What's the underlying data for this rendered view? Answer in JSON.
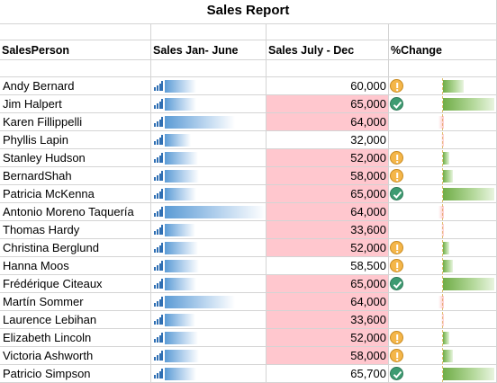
{
  "title": "Sales Report",
  "headers": {
    "salesperson": "SalesPerson",
    "jan_june": "Sales Jan- June",
    "july_dec": "Sales July - Dec",
    "change": "%Change"
  },
  "colors": {
    "highlight_fill": "#ffc7ce",
    "data_bar": "#5b9bd5",
    "positive_bar": "#70ad47",
    "warning_icon": "#f4b64a",
    "check_icon": "#3e9b72"
  },
  "rows": [
    {
      "name": "Andy Bernard",
      "jan_share": 0.31,
      "july_dec": "60,000",
      "highlight": false,
      "icon": "warning-icon",
      "change_share": 0.4
    },
    {
      "name": "Jim Halpert",
      "jan_share": 0.31,
      "july_dec": "65,000",
      "highlight": true,
      "icon": "check-icon",
      "change_share": 1.0
    },
    {
      "name": "Karen Fillippelli",
      "jan_share": 0.7,
      "july_dec": "64,000",
      "highlight": true,
      "icon": "none",
      "change_share": -0.1
    },
    {
      "name": "Phyllis Lapin",
      "jan_share": 0.26,
      "july_dec": "32,000",
      "highlight": false,
      "icon": "none",
      "change_share": -0.05
    },
    {
      "name": "Stanley Hudson",
      "jan_share": 0.33,
      "july_dec": "52,000",
      "highlight": true,
      "icon": "warning-icon",
      "change_share": 0.12
    },
    {
      "name": "BernardShah",
      "jan_share": 0.34,
      "july_dec": "58,000",
      "highlight": true,
      "icon": "warning-icon",
      "change_share": 0.2
    },
    {
      "name": "Patricia McKenna",
      "jan_share": 0.31,
      "july_dec": "65,000",
      "highlight": true,
      "icon": "check-icon",
      "change_share": 1.0
    },
    {
      "name": "Antonio Moreno Taquería",
      "jan_share": 1.0,
      "july_dec": "64,000",
      "highlight": true,
      "icon": "none",
      "change_share": -0.1
    },
    {
      "name": "Thomas Hardy",
      "jan_share": 0.3,
      "july_dec": "33,600",
      "highlight": true,
      "icon": "none",
      "change_share": -0.05
    },
    {
      "name": "Christina Berglund",
      "jan_share": 0.33,
      "july_dec": "52,000",
      "highlight": true,
      "icon": "warning-icon",
      "change_share": 0.12
    },
    {
      "name": "Hanna Moos",
      "jan_share": 0.34,
      "july_dec": "58,500",
      "highlight": false,
      "icon": "warning-icon",
      "change_share": 0.2
    },
    {
      "name": "Frédérique Citeaux",
      "jan_share": 0.31,
      "july_dec": "65,000",
      "highlight": true,
      "icon": "check-icon",
      "change_share": 1.0
    },
    {
      "name": "Martín Sommer",
      "jan_share": 0.7,
      "july_dec": "64,000",
      "highlight": true,
      "icon": "none",
      "change_share": -0.1
    },
    {
      "name": "Laurence Lebihan",
      "jan_share": 0.3,
      "july_dec": "33,600",
      "highlight": true,
      "icon": "none",
      "change_share": -0.05
    },
    {
      "name": "Elizabeth Lincoln",
      "jan_share": 0.33,
      "july_dec": "52,000",
      "highlight": true,
      "icon": "warning-icon",
      "change_share": 0.12
    },
    {
      "name": "Victoria Ashworth",
      "jan_share": 0.34,
      "july_dec": "58,000",
      "highlight": true,
      "icon": "warning-icon",
      "change_share": 0.2
    },
    {
      "name": "Patricio Simpson",
      "jan_share": 0.31,
      "july_dec": "65,700",
      "highlight": false,
      "icon": "check-icon",
      "change_share": 1.0
    }
  ]
}
